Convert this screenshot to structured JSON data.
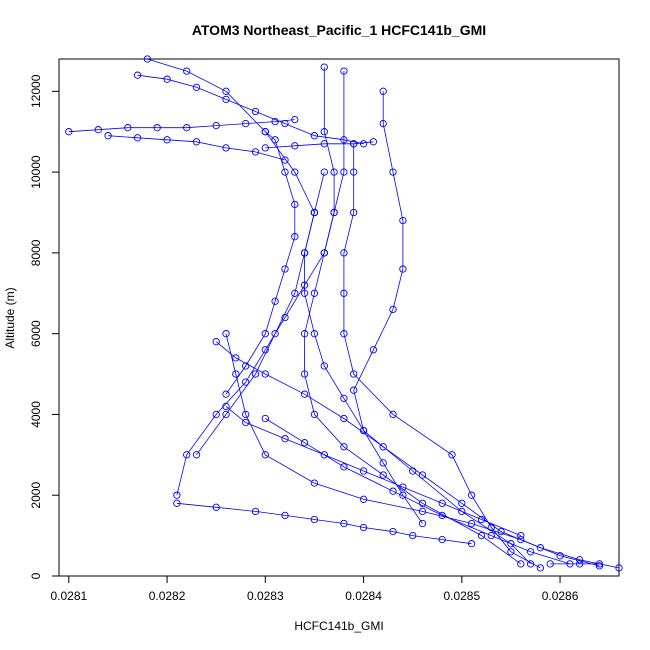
{
  "chart_data": {
    "type": "scatter",
    "title": "ATOM3 Northeast_Pacific_1 HCFC141b_GMI",
    "xlabel": "HCFC141b_GMI",
    "ylabel": "Altitude (m)",
    "xlim": [
      0.02809,
      0.02866
    ],
    "ylim": [
      0,
      12800
    ],
    "x_ticks": [
      0.0281,
      0.0282,
      0.0283,
      0.0284,
      0.0285,
      0.0286
    ],
    "x_tick_labels": [
      "0.0281",
      "0.0282",
      "0.0283",
      "0.0284",
      "0.0285",
      "0.0286"
    ],
    "y_ticks": [
      0,
      2000,
      4000,
      6000,
      8000,
      10000,
      12000
    ],
    "y_tick_labels": [
      "0",
      "2000",
      "4000",
      "6000",
      "8000",
      "10000",
      "12000"
    ],
    "marker": "open-circle",
    "color": "#0000ff",
    "connected": true,
    "grid": false,
    "series": [
      {
        "x": [
          0.02858,
          0.02855,
          0.02853,
          0.02851,
          0.02849,
          0.02843,
          0.02839,
          0.02838,
          0.02838,
          0.02838,
          0.02839,
          0.02839,
          0.02839
        ],
        "y": [
          200,
          600,
          1200,
          2000,
          3000,
          4000,
          5000,
          6000,
          7000,
          8000,
          9000,
          10000,
          10700
        ]
      },
      {
        "x": [
          0.02857,
          0.02855,
          0.0285,
          0.02845,
          0.0284,
          0.02839,
          0.02841,
          0.02843,
          0.02844,
          0.02844,
          0.02843,
          0.02842,
          0.02842
        ],
        "y": [
          300,
          800,
          1600,
          2600,
          3600,
          4600,
          5600,
          6600,
          7600,
          8800,
          10000,
          11200,
          12000
        ]
      },
      {
        "x": [
          0.02856,
          0.02852,
          0.02846,
          0.02842,
          0.02838,
          0.02835,
          0.02834,
          0.02834,
          0.02835,
          0.02836,
          0.02837,
          0.02838,
          0.02838
        ],
        "y": [
          300,
          1000,
          1800,
          2500,
          3200,
          4000,
          5000,
          6000,
          7000,
          8000,
          9000,
          10000,
          12500
        ]
      },
      {
        "x": [
          0.02866,
          0.02862,
          0.02858,
          0.02854,
          0.0285,
          0.02846,
          0.02842,
          0.02838,
          0.02834,
          0.0283,
          0.02827,
          0.02825
        ],
        "y": [
          200,
          400,
          700,
          1100,
          1800,
          2500,
          3200,
          3900,
          4500,
          5000,
          5400,
          5800
        ]
      },
      {
        "x": [
          0.02821,
          0.02822,
          0.02825,
          0.02828,
          0.0283,
          0.02832,
          0.02834,
          0.02836,
          0.02837,
          0.02837,
          0.02836,
          0.02836
        ],
        "y": [
          2000,
          3000,
          4000,
          4800,
          5600,
          6400,
          7200,
          8000,
          9000,
          10000,
          11000,
          12600
        ]
      },
      {
        "x": [
          0.02864,
          0.0286,
          0.02856,
          0.02851,
          0.02846,
          0.0284,
          0.02835,
          0.0283,
          0.02828,
          0.02827,
          0.02826
        ],
        "y": [
          250,
          500,
          900,
          1300,
          1600,
          1900,
          2300,
          3000,
          4000,
          5000,
          6000
        ]
      },
      {
        "x": [
          0.02826,
          0.02828,
          0.0283,
          0.02831,
          0.02832,
          0.02833,
          0.02833,
          0.02832,
          0.02831,
          0.0283
        ],
        "y": [
          4500,
          5200,
          6000,
          6800,
          7600,
          8400,
          9200,
          10000,
          10800,
          11000
        ]
      },
      {
        "x": [
          0.02846,
          0.02844,
          0.02842,
          0.0284,
          0.02838,
          0.02836,
          0.02835,
          0.02834,
          0.02834,
          0.02835
        ],
        "y": [
          1300,
          2000,
          2800,
          3600,
          4400,
          5200,
          6000,
          7000,
          8000,
          9000
        ]
      },
      {
        "x": [
          0.02823,
          0.02826,
          0.02829,
          0.02831,
          0.02833,
          0.02834,
          0.02835,
          0.02836
        ],
        "y": [
          3000,
          4000,
          5000,
          6000,
          7000,
          8000,
          9000,
          10000
        ]
      },
      {
        "x": [
          0.02821,
          0.02825,
          0.02829,
          0.02832,
          0.02835,
          0.02838,
          0.0284,
          0.02843,
          0.02845,
          0.02848,
          0.02851
        ],
        "y": [
          1800,
          1700,
          1600,
          1500,
          1400,
          1300,
          1200,
          1100,
          1000,
          900,
          800
        ]
      },
      {
        "x": [
          0.02817,
          0.0282,
          0.02823,
          0.02826,
          0.02829,
          0.02832,
          0.02835,
          0.02838,
          0.0284
        ],
        "y": [
          12400,
          12300,
          12100,
          11800,
          11500,
          11200,
          10900,
          10800,
          10700
        ]
      },
      {
        "x": [
          0.0281,
          0.02813,
          0.02816,
          0.02819,
          0.02822,
          0.02825,
          0.02828,
          0.02831,
          0.02833
        ],
        "y": [
          11000,
          11050,
          11100,
          11100,
          11100,
          11150,
          11200,
          11250,
          11300
        ]
      },
      {
        "x": [
          0.02814,
          0.02817,
          0.0282,
          0.02823,
          0.02826,
          0.02829,
          0.02832
        ],
        "y": [
          10900,
          10850,
          10800,
          10750,
          10600,
          10500,
          10300
        ]
      },
      {
        "x": [
          0.0283,
          0.02833,
          0.02836,
          0.02839,
          0.02841
        ],
        "y": [
          10600,
          10650,
          10700,
          10700,
          10750
        ]
      },
      {
        "x": [
          0.02818,
          0.02822,
          0.02826,
          0.0283,
          0.02833,
          0.02835
        ],
        "y": [
          12800,
          12500,
          12000,
          11000,
          10000,
          9000
        ]
      },
      {
        "x": [
          0.02856,
          0.02852,
          0.02848,
          0.02844,
          0.0284,
          0.02836,
          0.02832,
          0.02828,
          0.02826
        ],
        "y": [
          1000,
          1400,
          1800,
          2200,
          2600,
          3000,
          3400,
          3800,
          4200
        ]
      },
      {
        "x": [
          0.02861,
          0.02857,
          0.02853,
          0.02848,
          0.02843,
          0.02838,
          0.02834,
          0.0283
        ],
        "y": [
          300,
          600,
          1000,
          1500,
          2100,
          2700,
          3300,
          3900
        ]
      },
      {
        "x": [
          0.02859,
          0.02862,
          0.02864
        ],
        "y": [
          300,
          300,
          300
        ]
      }
    ]
  }
}
